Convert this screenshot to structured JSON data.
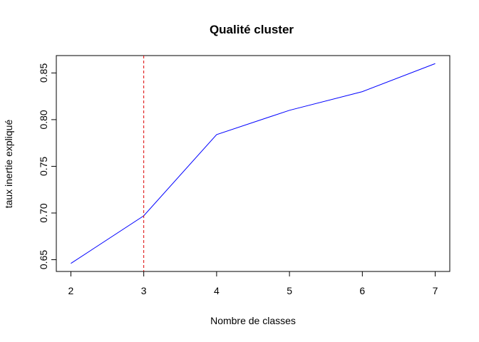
{
  "chart_data": {
    "type": "line",
    "title": "Qualité cluster",
    "xlabel": "Nombre de classes",
    "ylabel": "taux inertie expliqué",
    "x": [
      2,
      3,
      4,
      5,
      6,
      7
    ],
    "series": [
      {
        "values": [
          0.646,
          0.697,
          0.784,
          0.81,
          0.83,
          0.86
        ],
        "color": "#0000ff"
      }
    ],
    "xticks": [
      2,
      3,
      4,
      5,
      6,
      7
    ],
    "xtick_labels": [
      "2",
      "3",
      "4",
      "5",
      "6",
      "7"
    ],
    "yticks": [
      0.65,
      0.7,
      0.75,
      0.8,
      0.85
    ],
    "ytick_labels": [
      "0.65",
      "0.70",
      "0.75",
      "0.80",
      "0.85"
    ],
    "xlim": [
      1.8,
      7.2
    ],
    "ylim": [
      0.6374,
      0.8686
    ],
    "vline": {
      "x": 3,
      "color": "#dd0000",
      "style": "dashed"
    },
    "grid": false,
    "legend": "none"
  }
}
